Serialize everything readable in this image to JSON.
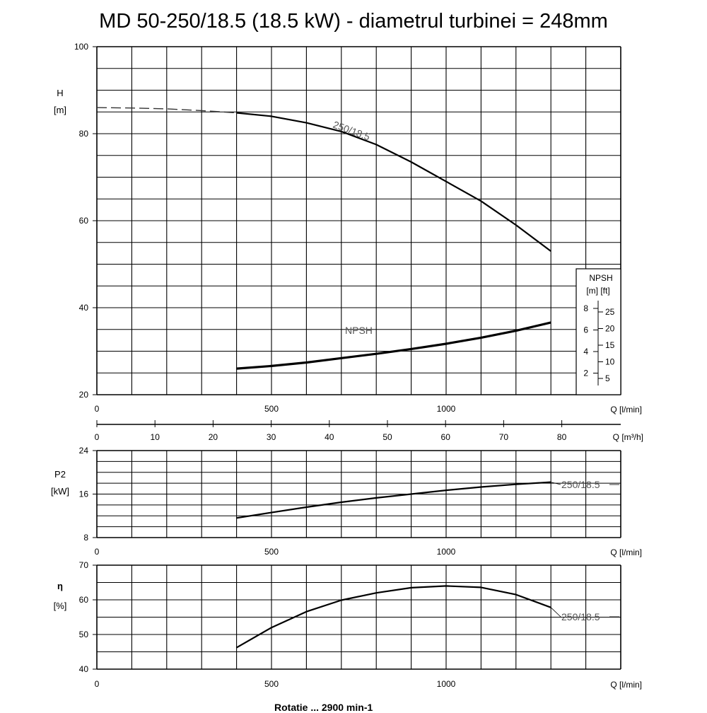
{
  "title": "MD 50-250/18.5 (18.5 kW) - diametrul turbinei = 248mm",
  "footer": "Rotatie ... 2900 min-1",
  "chart_data": [
    {
      "type": "line",
      "id": "head",
      "ylabel_line1": "H",
      "ylabel_line2": "[m]",
      "xlabel": "Q [l/min]",
      "xlabel2": "Q [m³/h]",
      "xlim": [
        0,
        1500
      ],
      "ylim": [
        20,
        100
      ],
      "xticks": [
        "0",
        "500",
        "1000"
      ],
      "yticks": [
        "20",
        "40",
        "60",
        "80",
        "100"
      ],
      "xticks2": [
        "0",
        "10",
        "20",
        "30",
        "40",
        "50",
        "60",
        "70",
        "80"
      ],
      "series": [
        {
          "name": "250/18.5",
          "x": [
            400,
            500,
            600,
            700,
            800,
            900,
            1000,
            1100,
            1200,
            1300
          ],
          "y": [
            84.8,
            84.0,
            82.5,
            80.5,
            77.5,
            73.5,
            69.0,
            64.5,
            59.0,
            53.0
          ]
        },
        {
          "name": "",
          "style": "dashed",
          "x": [
            0,
            100,
            200,
            300,
            400
          ],
          "y": [
            86.0,
            85.9,
            85.7,
            85.3,
            84.8
          ]
        },
        {
          "name": "NPSH",
          "x": [
            400,
            500,
            600,
            700,
            800,
            900,
            1000,
            1100,
            1200,
            1300
          ],
          "y": [
            26.0,
            26.6,
            27.4,
            28.4,
            29.4,
            30.5,
            31.7,
            33.1,
            34.7,
            36.6
          ]
        }
      ],
      "npsh_scale": {
        "title": "NPSH",
        "units": "[m]  [ft]",
        "m_ticks": [
          "8",
          "6",
          "4",
          "2"
        ],
        "ft_ticks": [
          "25",
          "20",
          "15",
          "10",
          "5"
        ]
      }
    },
    {
      "type": "line",
      "id": "power",
      "ylabel_line1": "P2",
      "ylabel_line2": "[kW]",
      "xlabel": "Q [l/min]",
      "xlim": [
        0,
        1500
      ],
      "ylim": [
        8,
        24
      ],
      "xticks": [
        "0",
        "500",
        "1000"
      ],
      "yticks": [
        "8",
        "16",
        "24"
      ],
      "series": [
        {
          "name": "250/18.5",
          "x": [
            400,
            500,
            600,
            700,
            800,
            900,
            1000,
            1100,
            1200,
            1300
          ],
          "y": [
            11.6,
            12.6,
            13.6,
            14.5,
            15.3,
            16.0,
            16.7,
            17.3,
            17.8,
            18.2
          ]
        }
      ]
    },
    {
      "type": "line",
      "id": "efficiency",
      "ylabel_line1": "η",
      "ylabel_line2": "[%]",
      "xlabel": "Q [l/min]",
      "xlim": [
        0,
        1500
      ],
      "ylim": [
        40,
        70
      ],
      "xticks": [
        "0",
        "500",
        "1000"
      ],
      "yticks": [
        "40",
        "50",
        "60",
        "70"
      ],
      "series": [
        {
          "name": "250/18.5",
          "x": [
            400,
            500,
            600,
            700,
            800,
            900,
            1000,
            1100,
            1200,
            1300
          ],
          "y": [
            46.2,
            52.0,
            56.6,
            59.9,
            62.0,
            63.5,
            64.0,
            63.6,
            61.5,
            57.8
          ]
        }
      ]
    }
  ]
}
